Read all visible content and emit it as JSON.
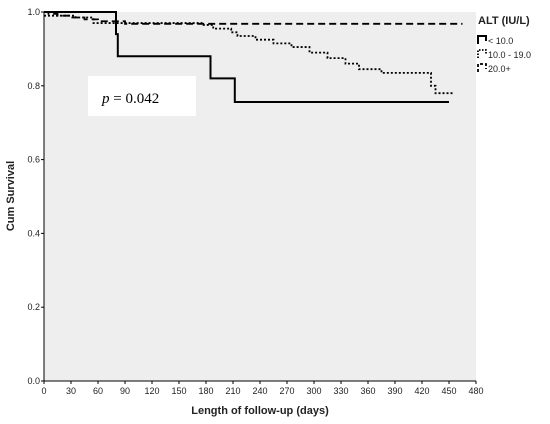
{
  "chart_data": {
    "type": "line",
    "step": true,
    "xlabel": "Length of follow-up (days)",
    "ylabel": "Cum Survival",
    "xlim": [
      0,
      480
    ],
    "ylim": [
      0.0,
      1.0
    ],
    "x_ticks": [
      0,
      30,
      60,
      90,
      120,
      150,
      180,
      210,
      240,
      270,
      300,
      330,
      360,
      390,
      420,
      450,
      480
    ],
    "y_ticks": [
      0.0,
      0.2,
      0.4,
      0.6,
      0.8,
      1.0
    ],
    "y_tick_labels": [
      "0.0",
      "0.2",
      "0.4",
      "0.6",
      "0.8",
      "1.0"
    ],
    "grid": false,
    "background": "#eeeeee",
    "legend": {
      "title": "ALT (IU/L)",
      "position": "right",
      "entries": [
        "< 10.0",
        "10.0 - 19.0",
        "20.0+"
      ]
    },
    "annotation": {
      "italic": "p",
      "text": " = 0.042"
    },
    "series": [
      {
        "name": "< 10.0",
        "style": "solid",
        "color": "#000000",
        "x": [
          0,
          80,
          82,
          185,
          212,
          450
        ],
        "y": [
          1.0,
          0.94,
          0.88,
          0.82,
          0.756,
          0.756
        ]
      },
      {
        "name": "10.0 - 19.0",
        "style": "dotted",
        "color": "#000000",
        "x": [
          0,
          35,
          55,
          175,
          188,
          208,
          215,
          235,
          255,
          275,
          295,
          315,
          335,
          350,
          375,
          430,
          435,
          455
        ],
        "y": [
          0.99,
          0.985,
          0.97,
          0.965,
          0.955,
          0.945,
          0.935,
          0.925,
          0.915,
          0.905,
          0.89,
          0.875,
          0.86,
          0.845,
          0.835,
          0.8,
          0.78,
          0.78
        ]
      },
      {
        "name": "20.0+",
        "style": "dashed",
        "color": "#000000",
        "x": [
          0,
          5,
          15,
          30,
          45,
          60,
          90,
          465
        ],
        "y": [
          1.0,
          0.995,
          0.99,
          0.985,
          0.98,
          0.975,
          0.968,
          0.968
        ]
      }
    ]
  }
}
